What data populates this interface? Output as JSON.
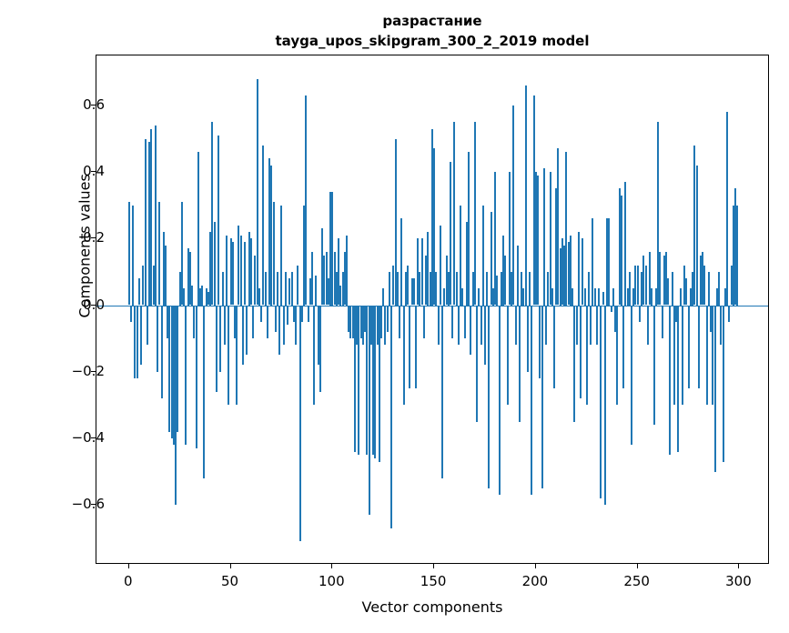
{
  "chart_data": {
    "type": "bar",
    "title_line1": "разрастание",
    "title_line2": "tayga_upos_skipgram_300_2_2019 model",
    "xlabel": "Vector components",
    "ylabel": "Components values",
    "bar_color": "#1f77b4",
    "xlim": [
      -16,
      315
    ],
    "ylim": [
      -0.78,
      0.75
    ],
    "x_ticks": [
      0,
      50,
      100,
      150,
      200,
      250,
      300
    ],
    "y_ticks": [
      -0.6,
      -0.4,
      -0.2,
      0.0,
      0.2,
      0.4,
      0.6
    ],
    "y_tick_labels": [
      "−0.6",
      "−0.4",
      "−0.2",
      "0.0",
      "0.2",
      "0.4",
      "0.6"
    ],
    "legend": "none",
    "grid": false,
    "values": [
      0.31,
      -0.05,
      0.3,
      -0.22,
      -0.22,
      0.08,
      -0.18,
      0.12,
      0.5,
      -0.12,
      0.49,
      0.53,
      0.12,
      0.54,
      -0.2,
      0.31,
      -0.28,
      0.22,
      0.18,
      -0.1,
      -0.38,
      -0.4,
      -0.42,
      -0.6,
      -0.38,
      0.1,
      0.31,
      0.05,
      -0.42,
      0.17,
      0.16,
      0.06,
      -0.1,
      -0.43,
      0.46,
      0.05,
      0.06,
      -0.52,
      0.05,
      0.04,
      0.22,
      0.55,
      0.25,
      -0.26,
      0.51,
      -0.2,
      0.1,
      -0.12,
      0.21,
      -0.3,
      0.2,
      0.19,
      -0.1,
      -0.3,
      0.24,
      0.21,
      -0.18,
      0.19,
      -0.15,
      0.22,
      0.2,
      -0.1,
      0.15,
      0.68,
      0.05,
      -0.05,
      0.48,
      0.1,
      -0.1,
      0.44,
      0.42,
      0.31,
      -0.08,
      0.1,
      -0.15,
      0.3,
      -0.12,
      0.1,
      -0.06,
      0.08,
      0.1,
      -0.05,
      -0.12,
      0.12,
      -0.71,
      -0.05,
      0.3,
      0.63,
      -0.05,
      0.08,
      0.16,
      -0.3,
      0.09,
      -0.18,
      -0.26,
      0.23,
      0.15,
      0.16,
      0.08,
      0.34,
      0.34,
      0.16,
      0.1,
      0.2,
      0.06,
      0.1,
      0.16,
      0.21,
      -0.08,
      -0.1,
      -0.1,
      -0.44,
      -0.12,
      -0.45,
      -0.1,
      -0.12,
      -0.08,
      -0.45,
      -0.63,
      -0.12,
      -0.45,
      -0.46,
      -0.12,
      -0.47,
      -0.1,
      0.05,
      -0.12,
      -0.08,
      0.1,
      -0.67,
      0.12,
      0.5,
      0.1,
      -0.1,
      0.26,
      -0.3,
      0.1,
      0.12,
      -0.25,
      0.08,
      0.08,
      -0.25,
      0.2,
      0.1,
      0.2,
      -0.1,
      0.15,
      0.22,
      0.1,
      0.53,
      0.47,
      0.1,
      -0.12,
      0.24,
      -0.52,
      0.05,
      0.15,
      0.1,
      0.43,
      -0.1,
      0.55,
      0.1,
      -0.12,
      0.3,
      0.05,
      -0.1,
      0.25,
      0.46,
      -0.15,
      0.1,
      0.55,
      -0.35,
      0.05,
      -0.12,
      0.3,
      -0.18,
      0.1,
      -0.55,
      0.28,
      0.05,
      0.4,
      0.09,
      -0.57,
      0.1,
      0.21,
      0.15,
      -0.3,
      0.4,
      0.1,
      0.6,
      -0.12,
      0.18,
      -0.35,
      0.1,
      0.05,
      0.66,
      -0.2,
      0.1,
      -0.57,
      0.63,
      0.4,
      0.39,
      -0.22,
      -0.55,
      0.41,
      -0.12,
      0.1,
      0.4,
      0.05,
      -0.25,
      0.35,
      0.47,
      0.17,
      0.2,
      0.18,
      0.46,
      0.19,
      0.21,
      0.05,
      -0.35,
      -0.12,
      0.22,
      -0.28,
      0.2,
      0.05,
      -0.3,
      0.1,
      -0.12,
      0.26,
      0.05,
      -0.12,
      0.05,
      -0.58,
      0.04,
      -0.6,
      0.26,
      0.26,
      -0.02,
      0.05,
      -0.08,
      -0.3,
      0.35,
      0.33,
      -0.25,
      0.37,
      0.05,
      0.1,
      -0.42,
      0.05,
      0.12,
      0.12,
      -0.05,
      0.1,
      0.15,
      0.12,
      -0.12,
      0.16,
      0.05,
      -0.36,
      0.05,
      0.55,
      0.16,
      -0.1,
      0.15,
      0.16,
      0.08,
      -0.45,
      0.1,
      -0.3,
      -0.05,
      -0.44,
      0.05,
      -0.3,
      0.12,
      0.08,
      -0.25,
      0.05,
      0.1,
      0.48,
      0.42,
      -0.25,
      0.15,
      0.16,
      0.12,
      -0.3,
      0.1,
      -0.08,
      -0.3,
      -0.5,
      0.05,
      0.1,
      -0.12,
      -0.47,
      0.05,
      0.58,
      -0.05,
      0.12,
      0.3,
      0.35,
      0.3
    ]
  }
}
